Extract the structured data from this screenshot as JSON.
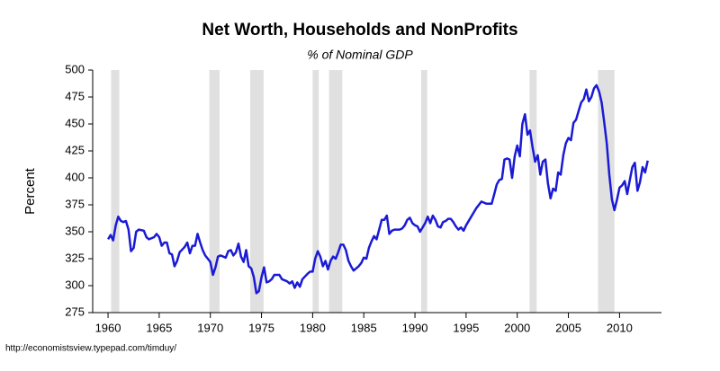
{
  "chart_data": {
    "type": "line",
    "title": "Net Worth, Households and NonProfits",
    "subtitle": "% of Nominal GDP",
    "ylabel": "Percent",
    "source": "http://economistsview.typepad.com/timduy/",
    "color": "#1a1ad6",
    "shade_color": "#e0e0e0",
    "recessions": [
      [
        1960.3,
        1961.1
      ],
      [
        1969.9,
        1970.9
      ],
      [
        1973.9,
        1975.2
      ],
      [
        1980.0,
        1980.6
      ],
      [
        1981.6,
        1982.9
      ],
      [
        1990.6,
        1991.2
      ],
      [
        2001.2,
        2001.9
      ],
      [
        2007.9,
        2009.5
      ]
    ],
    "xlim": [
      1958.5,
      2014.1
    ],
    "ylim": [
      275,
      500
    ],
    "xticks": [
      1960,
      1965,
      1970,
      1975,
      1980,
      1985,
      1990,
      1995,
      2000,
      2005,
      2010
    ],
    "yticks": [
      275,
      300,
      325,
      350,
      375,
      400,
      425,
      450,
      475,
      500
    ],
    "x": [
      1960.0,
      1960.25,
      1960.5,
      1960.75,
      1961.0,
      1961.25,
      1961.5,
      1961.75,
      1962.0,
      1962.25,
      1962.5,
      1962.75,
      1963.0,
      1963.5,
      1963.75,
      1964.0,
      1964.5,
      1964.75,
      1965.0,
      1965.25,
      1965.5,
      1965.75,
      1966.0,
      1966.25,
      1966.5,
      1966.75,
      1967.0,
      1967.5,
      1967.75,
      1968.0,
      1968.25,
      1968.5,
      1968.75,
      1969.0,
      1969.25,
      1969.5,
      1969.75,
      1970.0,
      1970.25,
      1970.5,
      1970.75,
      1971.0,
      1971.5,
      1971.75,
      1972.0,
      1972.25,
      1972.5,
      1972.75,
      1973.0,
      1973.25,
      1973.5,
      1973.75,
      1974.0,
      1974.25,
      1974.5,
      1974.75,
      1975.0,
      1975.25,
      1975.5,
      1975.75,
      1976.0,
      1976.25,
      1976.75,
      1977.0,
      1977.5,
      1977.75,
      1978.0,
      1978.25,
      1978.5,
      1978.75,
      1979.0,
      1979.5,
      1979.75,
      1980.0,
      1980.25,
      1980.5,
      1980.75,
      1981.0,
      1981.25,
      1981.5,
      1981.75,
      1982.0,
      1982.25,
      1982.5,
      1982.75,
      1983.0,
      1983.25,
      1983.5,
      1983.75,
      1984.0,
      1984.5,
      1984.75,
      1985.0,
      1985.25,
      1985.5,
      1985.75,
      1986.0,
      1986.25,
      1986.5,
      1986.75,
      1987.0,
      1987.25,
      1987.5,
      1987.75,
      1988.0,
      1988.5,
      1988.75,
      1989.0,
      1989.25,
      1989.5,
      1989.75,
      1990.0,
      1990.25,
      1990.5,
      1990.75,
      1991.0,
      1991.25,
      1991.5,
      1991.75,
      1992.0,
      1992.25,
      1992.5,
      1992.75,
      1993.0,
      1993.25,
      1993.5,
      1993.75,
      1994.0,
      1994.25,
      1994.5,
      1994.75,
      1995.0,
      1995.5,
      1996.0,
      1996.5,
      1996.75,
      1997.0,
      1997.5,
      1997.75,
      1998.0,
      1998.25,
      1998.5,
      1998.75,
      1999.0,
      1999.25,
      1999.5,
      1999.75,
      2000.0,
      2000.25,
      2000.5,
      2000.75,
      2001.0,
      2001.25,
      2001.5,
      2001.75,
      2002.0,
      2002.25,
      2002.5,
      2002.75,
      2003.0,
      2003.25,
      2003.5,
      2003.75,
      2004.0,
      2004.25,
      2004.5,
      2004.75,
      2005.0,
      2005.25,
      2005.5,
      2005.75,
      2006.0,
      2006.25,
      2006.5,
      2006.75,
      2007.0,
      2007.25,
      2007.5,
      2007.75,
      2008.0,
      2008.25,
      2008.5,
      2008.75,
      2009.0,
      2009.25,
      2009.5,
      2009.75,
      2010.0,
      2010.25,
      2010.5,
      2010.75,
      2011.0,
      2011.25,
      2011.5,
      2011.75,
      2012.0,
      2012.25,
      2012.5,
      2012.75
    ],
    "values": [
      343,
      347,
      342,
      356,
      364,
      360,
      359,
      360,
      352,
      332,
      335,
      350,
      352,
      351,
      345,
      343,
      345,
      348,
      345,
      337,
      340,
      340,
      330,
      329,
      318,
      323,
      331,
      336,
      340,
      330,
      337,
      337,
      348,
      340,
      333,
      328,
      325,
      322,
      310,
      317,
      327,
      328,
      326,
      332,
      333,
      328,
      331,
      339,
      327,
      322,
      333,
      318,
      316,
      308,
      293,
      295,
      308,
      317,
      303,
      304,
      306,
      310,
      310,
      306,
      304,
      302,
      304,
      298,
      303,
      299,
      306,
      311,
      313,
      313,
      325,
      332,
      327,
      318,
      323,
      315,
      323,
      327,
      325,
      331,
      338,
      338,
      333,
      323,
      318,
      314,
      318,
      321,
      326,
      325,
      335,
      341,
      346,
      343,
      352,
      361,
      361,
      365,
      348,
      351,
      352,
      352,
      353,
      356,
      361,
      363,
      358,
      356,
      355,
      350,
      354,
      358,
      364,
      358,
      365,
      361,
      355,
      354,
      359,
      360,
      362,
      362,
      359,
      355,
      352,
      354,
      351,
      356,
      364,
      372,
      378,
      377,
      376,
      376,
      385,
      394,
      398,
      399,
      417,
      418,
      417,
      400,
      420,
      430,
      420,
      450,
      459,
      440,
      444,
      428,
      415,
      421,
      403,
      415,
      417,
      395,
      381,
      390,
      388,
      405,
      403,
      421,
      432,
      437,
      435,
      451,
      454,
      462,
      470,
      473,
      482,
      471,
      475,
      483,
      486,
      480,
      470,
      452,
      432,
      403,
      380,
      370,
      380,
      391,
      393,
      397,
      385,
      398,
      410,
      414,
      388,
      396,
      410,
      405,
      416
    ]
  }
}
